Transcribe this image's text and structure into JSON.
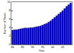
{
  "chart_data": {
    "type": "bar",
    "x_label": "Year",
    "y_label": "Number of Tasks",
    "categories": [
      "80",
      null,
      null,
      null,
      null,
      "85",
      null,
      null,
      null,
      null,
      "90",
      null,
      null,
      null,
      null,
      "95",
      null,
      null,
      null,
      null,
      "00",
      null,
      null,
      null,
      null,
      "05",
      null,
      null,
      null,
      null
    ],
    "values": [
      3.4,
      3.5,
      3.5,
      3.6,
      3.7,
      3.8,
      3.9,
      3.9,
      3.9,
      4.0,
      4.0,
      4.1,
      4.2,
      4.3,
      4.4,
      4.6,
      4.8,
      5.0,
      5.3,
      5.6,
      6.0,
      6.4,
      6.8,
      7.2,
      7.6,
      8.0,
      8.5,
      9.0,
      9.4,
      9.8
    ],
    "color": "#0000cc",
    "ylim": [
      0,
      10
    ],
    "yticks": [
      0,
      2,
      4,
      6,
      8,
      10
    ],
    "grid": false
  }
}
